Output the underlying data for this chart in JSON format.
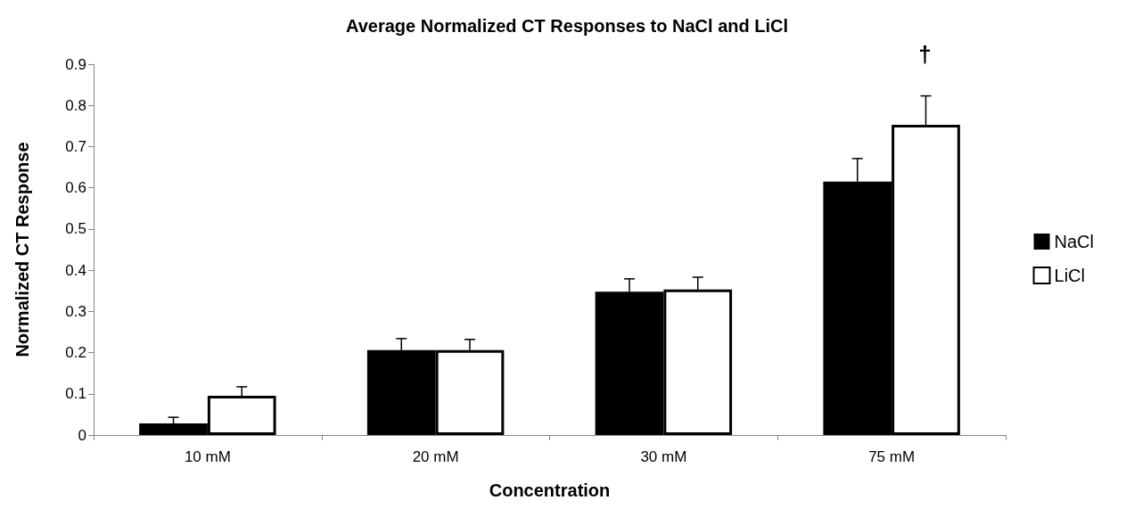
{
  "chart_data": {
    "type": "bar",
    "title": "Average Normalized CT Responses to NaCl and LiCl",
    "xlabel": "Concentration",
    "ylabel": "Normalized CT Response",
    "categories": [
      "10 mM",
      "20 mM",
      "30 mM",
      "75 mM"
    ],
    "series": [
      {
        "name": "NaCl",
        "color": "#000000",
        "values": [
          0.028,
          0.206,
          0.348,
          0.615
        ],
        "errors": [
          [
            0.028,
            0.043
          ],
          [
            0.206,
            0.234
          ],
          [
            0.348,
            0.379
          ],
          [
            0.615,
            0.671
          ]
        ]
      },
      {
        "name": "LiCl",
        "color": "#ffffff",
        "values": [
          0.095,
          0.206,
          0.353,
          0.753
        ],
        "errors": [
          [
            0.095,
            0.117
          ],
          [
            0.206,
            0.232
          ],
          [
            0.353,
            0.383
          ],
          [
            0.753,
            0.823
          ]
        ]
      }
    ],
    "annotations": [
      "†"
    ],
    "ylim": [
      0,
      0.9
    ],
    "yticks": [
      0,
      0.1,
      0.2,
      0.3,
      0.4,
      0.5,
      0.6,
      0.7,
      0.8,
      0.9
    ],
    "grid": false,
    "legend": "right"
  }
}
